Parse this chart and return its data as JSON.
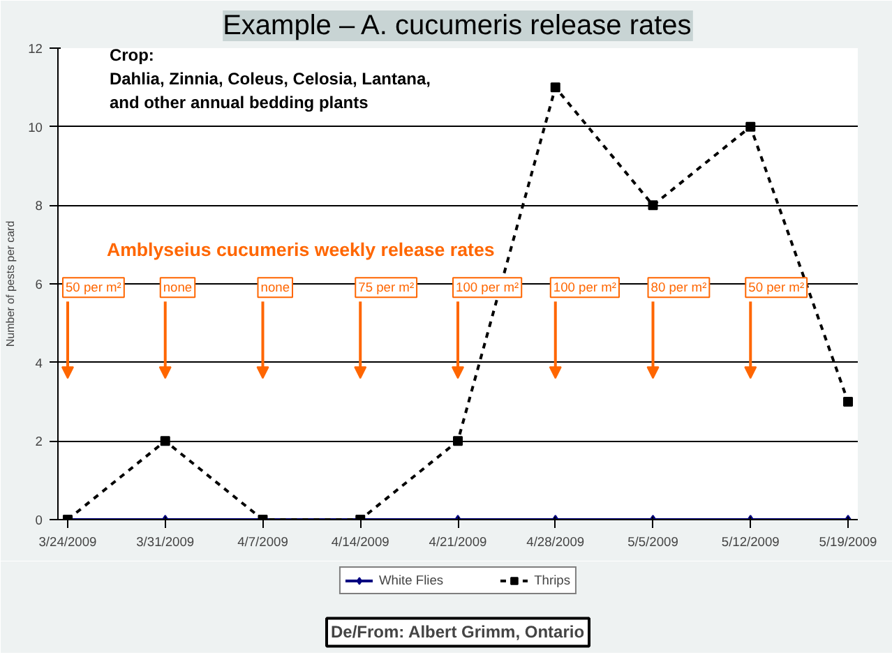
{
  "chart_data": {
    "type": "line",
    "title": "Example – A. cucumeris release rates",
    "ylabel": "Number of pests per card",
    "categories": [
      "3/24/2009",
      "3/31/2009",
      "4/7/2009",
      "4/14/2009",
      "4/21/2009",
      "4/28/2009",
      "5/5/2009",
      "5/12/2009",
      "5/19/2009"
    ],
    "series": [
      {
        "name": "White Flies",
        "color": "#000080",
        "marker": "diamond",
        "line_style": "solid",
        "values": [
          0,
          0,
          0,
          0,
          0,
          0,
          0,
          0,
          0
        ]
      },
      {
        "name": "Thrips",
        "color": "#000000",
        "marker": "square",
        "line_style": "dashed",
        "values": [
          0,
          2,
          0,
          0,
          2,
          11,
          8,
          10,
          3
        ]
      }
    ],
    "ylim": [
      0,
      12
    ],
    "yticks": [
      0,
      2,
      4,
      6,
      8,
      10,
      12
    ],
    "grid": "y",
    "legend": "bottom",
    "annotations": [
      "Crop:",
      "Dahlia, Zinnia, Coleus, Celosia, Lantana,",
      "and other annual bedding plants",
      "Amblyseius cucumeris weekly release rates",
      "50 per m²",
      "none",
      "none",
      "75 per m²",
      "100 per m²",
      "100 per m²",
      "80 per m²",
      "50 per m²",
      "De/From: Albert Grimm, Ontario"
    ]
  }
}
